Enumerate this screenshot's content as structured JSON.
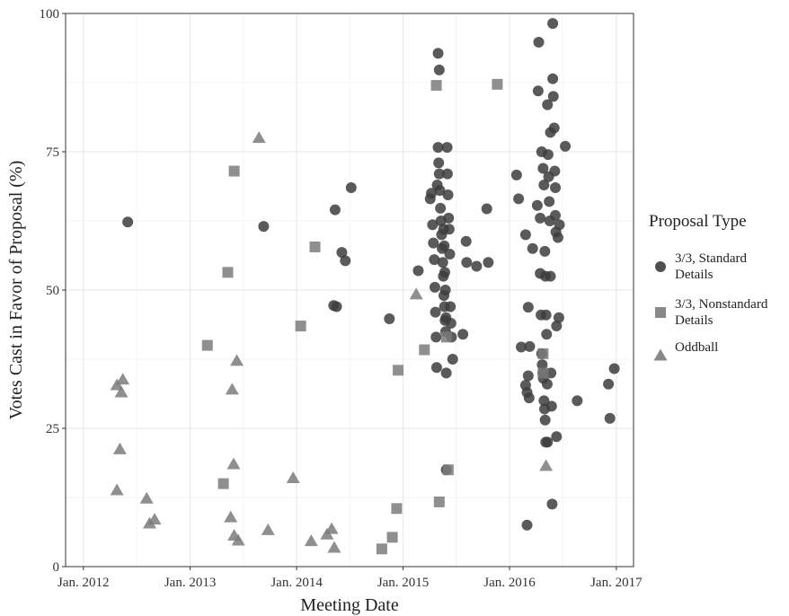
{
  "chart_data": {
    "type": "scatter",
    "xlabel": "Meeting Date",
    "ylabel": "Votes Cast in Favor of Proposal (%)",
    "xlim": [
      "2011-11-01",
      "2017-03-01"
    ],
    "ylim": [
      0,
      100
    ],
    "x_ticks": [
      {
        "date": "2012-01-01",
        "label": "Jan. 2012"
      },
      {
        "date": "2013-01-01",
        "label": "Jan. 2013"
      },
      {
        "date": "2014-01-01",
        "label": "Jan. 2014"
      },
      {
        "date": "2015-01-01",
        "label": "Jan. 2015"
      },
      {
        "date": "2016-01-01",
        "label": "Jan. 2016"
      },
      {
        "date": "2017-01-01",
        "label": "Jan. 2017"
      }
    ],
    "y_ticks": [
      {
        "value": 0,
        "label": "0"
      },
      {
        "value": 25,
        "label": "25"
      },
      {
        "value": 50,
        "label": "50"
      },
      {
        "value": 75,
        "label": "75"
      },
      {
        "value": 100,
        "label": "100"
      }
    ],
    "grid": true,
    "legend": {
      "title": "Proposal Type",
      "position": "right",
      "entries": [
        {
          "key": "standard",
          "label_lines": [
            "3/3, Standard",
            "Details"
          ],
          "shape": "circle",
          "color": "#3d3d3d"
        },
        {
          "key": "nonstandard",
          "label_lines": [
            "3/3, Nonstandard",
            "Details"
          ],
          "shape": "square",
          "color": "#7b7b7b"
        },
        {
          "key": "oddball",
          "label_lines": [
            "Oddball"
          ],
          "shape": "triangle",
          "color": "#7b7b7b"
        }
      ]
    },
    "series": [
      {
        "key": "standard",
        "points": [
          [
            "2012-06-01",
            62.3
          ],
          [
            "2013-09-10",
            61.5
          ],
          [
            "2014-05-08",
            47.2
          ],
          [
            "2014-05-18",
            47.0
          ],
          [
            "2014-05-13",
            64.5
          ],
          [
            "2014-06-05",
            56.8
          ],
          [
            "2014-06-17",
            55.3
          ],
          [
            "2014-07-07",
            68.5
          ],
          [
            "2014-11-15",
            44.8
          ],
          [
            "2015-02-22",
            53.5
          ],
          [
            "2015-04-04",
            66.5
          ],
          [
            "2015-04-08",
            67.5
          ],
          [
            "2015-04-12",
            61.8
          ],
          [
            "2015-04-15",
            58.5
          ],
          [
            "2015-04-18",
            55.5
          ],
          [
            "2015-04-20",
            50.5
          ],
          [
            "2015-04-22",
            46.0
          ],
          [
            "2015-04-24",
            41.5
          ],
          [
            "2015-04-26",
            36.0
          ],
          [
            "2015-04-28",
            69.0
          ],
          [
            "2015-05-01",
            75.8
          ],
          [
            "2015-05-03",
            73.0
          ],
          [
            "2015-05-05",
            71.0
          ],
          [
            "2015-05-07",
            68.0
          ],
          [
            "2015-05-09",
            64.8
          ],
          [
            "2015-05-11",
            62.5
          ],
          [
            "2015-05-13",
            60.0
          ],
          [
            "2015-05-15",
            57.5
          ],
          [
            "2015-05-17",
            55.0
          ],
          [
            "2015-05-19",
            52.5
          ],
          [
            "2015-05-21",
            49.0
          ],
          [
            "2015-05-23",
            47.0
          ],
          [
            "2015-05-25",
            44.5
          ],
          [
            "2015-05-27",
            42.5
          ],
          [
            "2015-05-29",
            35.0
          ],
          [
            "2015-05-01",
            92.8
          ],
          [
            "2015-05-05",
            89.8
          ],
          [
            "2015-05-20",
            61.0
          ],
          [
            "2015-05-22",
            58.0
          ],
          [
            "2015-05-24",
            53.2
          ],
          [
            "2015-05-26",
            50.0
          ],
          [
            "2015-05-28",
            45.0
          ],
          [
            "2015-06-01",
            75.8
          ],
          [
            "2015-06-02",
            71.0
          ],
          [
            "2015-06-04",
            67.2
          ],
          [
            "2015-06-06",
            63.0
          ],
          [
            "2015-06-08",
            61.0
          ],
          [
            "2015-06-10",
            56.5
          ],
          [
            "2015-06-12",
            47.0
          ],
          [
            "2015-06-14",
            44.0
          ],
          [
            "2015-06-16",
            41.5
          ],
          [
            "2015-06-20",
            37.5
          ],
          [
            "2015-05-29",
            17.5
          ],
          [
            "2015-08-05",
            58.8
          ],
          [
            "2015-08-07",
            55.0
          ],
          [
            "2015-07-25",
            42.0
          ],
          [
            "2015-09-10",
            54.3
          ],
          [
            "2015-10-15",
            64.7
          ],
          [
            "2015-10-20",
            55.0
          ],
          [
            "2016-01-25",
            70.8
          ],
          [
            "2016-02-01",
            66.5
          ],
          [
            "2016-02-10",
            39.7
          ],
          [
            "2016-02-25",
            60.0
          ],
          [
            "2016-03-05",
            46.9
          ],
          [
            "2016-03-05",
            34.5
          ],
          [
            "2016-03-01",
            31.5
          ],
          [
            "2016-02-25",
            32.8
          ],
          [
            "2016-03-08",
            30.5
          ],
          [
            "2016-03-10",
            39.8
          ],
          [
            "2016-03-20",
            57.5
          ],
          [
            "2016-04-05",
            65.3
          ],
          [
            "2016-04-08",
            86.0
          ],
          [
            "2016-04-10",
            94.8
          ],
          [
            "2016-04-15",
            53.0
          ],
          [
            "2016-04-18",
            45.5
          ],
          [
            "2016-04-20",
            38.5
          ],
          [
            "2016-04-22",
            36.5
          ],
          [
            "2016-04-24",
            35.0
          ],
          [
            "2016-04-26",
            34.0
          ],
          [
            "2016-04-28",
            30.0
          ],
          [
            "2016-04-30",
            28.5
          ],
          [
            "2016-05-02",
            26.5
          ],
          [
            "2016-05-04",
            22.5
          ],
          [
            "2016-04-15",
            63.0
          ],
          [
            "2016-04-20",
            75.0
          ],
          [
            "2016-04-25",
            72.0
          ],
          [
            "2016-04-28",
            69.0
          ],
          [
            "2016-05-01",
            57.0
          ],
          [
            "2016-05-03",
            52.5
          ],
          [
            "2016-05-05",
            45.5
          ],
          [
            "2016-05-07",
            42.0
          ],
          [
            "2016-05-09",
            33.0
          ],
          [
            "2016-05-10",
            22.5
          ],
          [
            "2016-05-12",
            74.5
          ],
          [
            "2016-05-14",
            70.5
          ],
          [
            "2016-05-16",
            66.0
          ],
          [
            "2016-05-18",
            62.5
          ],
          [
            "2016-05-20",
            52.5
          ],
          [
            "2016-05-22",
            35.0
          ],
          [
            "2016-05-24",
            29.0
          ],
          [
            "2016-05-10",
            83.5
          ],
          [
            "2016-05-20",
            78.5
          ],
          [
            "2016-05-26",
            11.3
          ],
          [
            "2016-05-28",
            98.2
          ],
          [
            "2016-05-28",
            88.2
          ],
          [
            "2016-05-30",
            85.0
          ],
          [
            "2016-06-02",
            79.3
          ],
          [
            "2016-06-04",
            71.5
          ],
          [
            "2016-06-06",
            68.5
          ],
          [
            "2016-06-06",
            63.5
          ],
          [
            "2016-06-08",
            60.5
          ],
          [
            "2016-06-10",
            43.5
          ],
          [
            "2016-06-10",
            23.5
          ],
          [
            "2016-06-15",
            59.5
          ],
          [
            "2016-06-18",
            45.0
          ],
          [
            "2016-06-20",
            61.8
          ],
          [
            "2016-07-10",
            76.0
          ],
          [
            "2016-08-20",
            30.0
          ],
          [
            "2016-12-05",
            33.0
          ],
          [
            "2016-12-10",
            26.8
          ],
          [
            "2016-12-25",
            35.8
          ],
          [
            "2016-03-01",
            7.5
          ]
        ]
      },
      {
        "key": "nonstandard",
        "points": [
          [
            "2013-03-01",
            40.0
          ],
          [
            "2013-04-25",
            15.0
          ],
          [
            "2013-05-10",
            53.2
          ],
          [
            "2013-06-01",
            71.5
          ],
          [
            "2014-01-15",
            43.5
          ],
          [
            "2014-03-05",
            57.8
          ],
          [
            "2014-10-20",
            3.2
          ],
          [
            "2014-11-25",
            5.3
          ],
          [
            "2014-12-10",
            10.5
          ],
          [
            "2014-12-15",
            35.5
          ],
          [
            "2015-03-15",
            39.2
          ],
          [
            "2015-04-25",
            87.0
          ],
          [
            "2015-05-05",
            11.7
          ],
          [
            "2015-05-30",
            41.5
          ],
          [
            "2015-06-05",
            17.5
          ],
          [
            "2015-11-20",
            87.2
          ],
          [
            "2016-04-25",
            38.5
          ],
          [
            "2016-04-25",
            35.0
          ]
        ]
      },
      {
        "key": "oddball",
        "points": [
          [
            "2012-04-25",
            32.8
          ],
          [
            "2012-05-05",
            21.2
          ],
          [
            "2012-05-10",
            31.5
          ],
          [
            "2012-05-15",
            33.8
          ],
          [
            "2012-04-25",
            13.8
          ],
          [
            "2012-08-05",
            12.3
          ],
          [
            "2012-08-15",
            7.8
          ],
          [
            "2012-09-01",
            8.5
          ],
          [
            "2013-05-20",
            8.9
          ],
          [
            "2013-05-25",
            32.0
          ],
          [
            "2013-05-30",
            18.5
          ],
          [
            "2013-06-01",
            5.6
          ],
          [
            "2013-06-10",
            37.2
          ],
          [
            "2013-06-15",
            4.7
          ],
          [
            "2013-08-25",
            77.5
          ],
          [
            "2013-09-25",
            6.6
          ],
          [
            "2013-12-20",
            16.0
          ],
          [
            "2014-02-20",
            4.6
          ],
          [
            "2014-04-15",
            5.8
          ],
          [
            "2014-05-01",
            6.8
          ],
          [
            "2014-05-10",
            3.4
          ],
          [
            "2015-02-15",
            49.2
          ],
          [
            "2016-05-05",
            18.2
          ]
        ]
      }
    ]
  }
}
